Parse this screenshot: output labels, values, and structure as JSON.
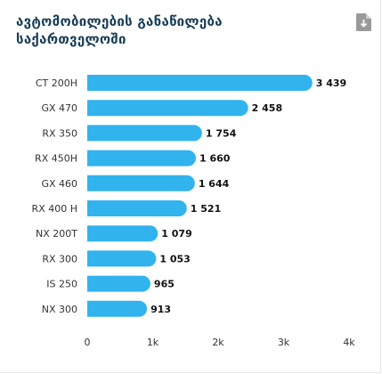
{
  "header": {
    "title": "ავტომობილების განაწილება\nსაქართველოში",
    "download_icon": "download-icon"
  },
  "colors": {
    "bar": "#31b3ee",
    "title": "#183d55"
  },
  "chart_data": {
    "type": "bar",
    "orientation": "horizontal",
    "categories": [
      "CT 200H",
      "GX 470",
      "RX 350",
      "RX 450H",
      "GX 460",
      "RX 400 H",
      "NX 200T",
      "RX 300",
      "IS 250",
      "NX 300"
    ],
    "values": [
      3439,
      2458,
      1754,
      1660,
      1644,
      1521,
      1079,
      1053,
      965,
      913
    ],
    "value_labels": [
      "3 439",
      "2 458",
      "1 754",
      "1 660",
      "1 644",
      "1 521",
      "1 079",
      "1 053",
      "965",
      "913"
    ],
    "x_ticks": [
      0,
      1000,
      2000,
      3000,
      4000
    ],
    "x_tick_labels": [
      "0",
      "1k",
      "2k",
      "3k",
      "4k"
    ],
    "xlim": [
      0,
      4000
    ],
    "grid": false,
    "legend": "none"
  }
}
